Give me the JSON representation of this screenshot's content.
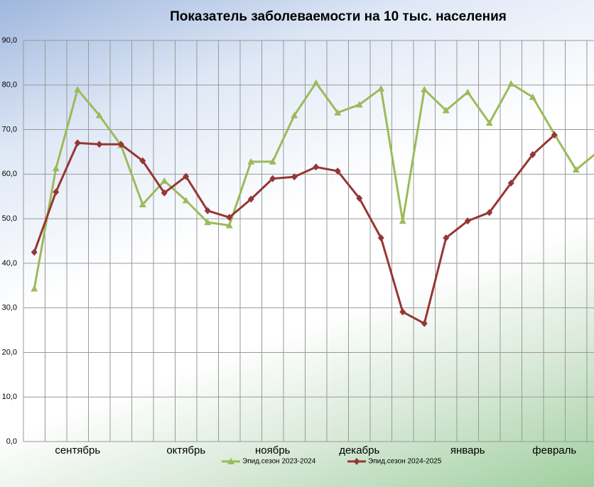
{
  "chart_data": {
    "type": "line",
    "title": "Показатель заболеваемости на 10 тыс. населения",
    "categories": [
      null,
      null,
      "сентябрь",
      null,
      null,
      null,
      null,
      "октябрь",
      null,
      null,
      null,
      "ноябрь",
      null,
      null,
      null,
      "декабрь",
      null,
      null,
      null,
      null,
      "январь",
      null,
      null,
      null,
      "февраль",
      null,
      null
    ],
    "series": [
      {
        "name": "Эпид.сезон 2023-2024",
        "color": "#9bbb59",
        "marker": "triangle",
        "values": [
          34.3,
          61.3,
          79.0,
          73.2,
          66.5,
          53.2,
          58.5,
          54.1,
          49.2,
          48.5,
          62.8,
          62.8,
          73.2,
          80.5,
          73.8,
          75.6,
          79.2,
          49.5,
          79.0,
          74.3,
          78.4,
          71.5,
          80.3,
          77.3,
          69.0,
          61.0,
          65.0
        ]
      },
      {
        "name": "Эпид.сезон 2024-2025",
        "color": "#953735",
        "marker": "diamond",
        "values": [
          42.5,
          56.0,
          67.0,
          66.7,
          66.7,
          63.0,
          55.8,
          59.5,
          51.8,
          50.3,
          54.4,
          59.0,
          59.4,
          61.6,
          60.7,
          54.6,
          45.7,
          29.1,
          26.5,
          45.7,
          49.5,
          51.4,
          58.0,
          64.4,
          68.8,
          null,
          null
        ]
      }
    ],
    "ylim": [
      0,
      90
    ],
    "yticks": [
      {
        "value": 0,
        "label": "0,0"
      },
      {
        "value": 10,
        "label": "10,0"
      },
      {
        "value": 20,
        "label": "20,0"
      },
      {
        "value": 30,
        "label": "30,0"
      },
      {
        "value": 40,
        "label": "40,0"
      },
      {
        "value": 50,
        "label": "50,0"
      },
      {
        "value": 60,
        "label": "60,0"
      },
      {
        "value": 70,
        "label": "70,0"
      },
      {
        "value": 80,
        "label": "80,0"
      },
      {
        "value": 90,
        "label": "90,0"
      }
    ],
    "grid": true
  }
}
